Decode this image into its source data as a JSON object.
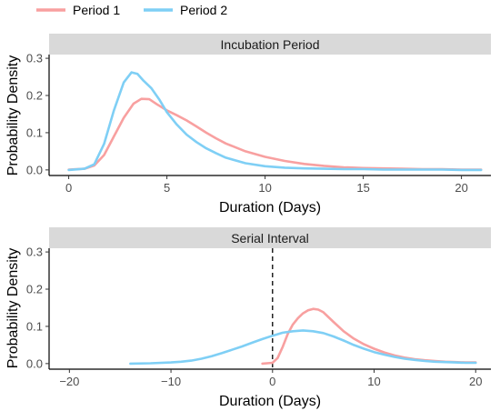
{
  "legend": {
    "items": [
      {
        "label": "Period 1",
        "color": "#F8A0A0"
      },
      {
        "label": "Period 2",
        "color": "#7FCFF5"
      }
    ],
    "position": "top-left"
  },
  "chart_data": [
    {
      "type": "line",
      "title": "Incubation Period",
      "xlabel": "Duration (Days)",
      "ylabel": "Probability Density",
      "xlim": [
        -1,
        21.5
      ],
      "ylim": [
        -0.015,
        0.31
      ],
      "xticks": [
        0,
        5,
        10,
        15,
        20
      ],
      "yticks": [
        0.0,
        0.1,
        0.2,
        0.3
      ],
      "grid": false,
      "series": [
        {
          "name": "Period 1",
          "color": "#F8A0A0",
          "x": [
            0,
            0.8,
            1.3,
            1.8,
            2.3,
            2.8,
            3.3,
            3.7,
            4.1,
            4.5,
            5,
            5.5,
            6,
            6.5,
            7,
            7.5,
            8,
            9,
            10,
            11,
            12,
            13,
            14,
            15,
            16,
            17,
            18,
            19,
            20,
            21
          ],
          "y": [
            0.001,
            0.003,
            0.012,
            0.04,
            0.09,
            0.14,
            0.178,
            0.191,
            0.19,
            0.176,
            0.16,
            0.147,
            0.133,
            0.117,
            0.1,
            0.085,
            0.071,
            0.05,
            0.035,
            0.024,
            0.016,
            0.011,
            0.007,
            0.005,
            0.004,
            0.003,
            0.002,
            0.002,
            0.001,
            0.001
          ]
        },
        {
          "name": "Period 2",
          "color": "#7FCFF5",
          "x": [
            0,
            0.8,
            1.3,
            1.8,
            2.3,
            2.8,
            3.2,
            3.5,
            3.8,
            4.2,
            4.6,
            5,
            5.5,
            6,
            6.5,
            7,
            7.5,
            8,
            9,
            10,
            11,
            12,
            13,
            14,
            15,
            16,
            17,
            18,
            19,
            20,
            21
          ],
          "y": [
            0.0,
            0.003,
            0.015,
            0.07,
            0.16,
            0.235,
            0.262,
            0.258,
            0.24,
            0.22,
            0.19,
            0.155,
            0.122,
            0.095,
            0.075,
            0.058,
            0.045,
            0.033,
            0.018,
            0.01,
            0.006,
            0.004,
            0.003,
            0.002,
            0.002,
            0.001,
            0.001,
            0.001,
            0.001,
            0.0,
            0.0
          ]
        }
      ]
    },
    {
      "type": "line",
      "title": "Serial Interval",
      "xlabel": "Duration (Days)",
      "ylabel": "Probability Density",
      "xlim": [
        -22,
        21.5
      ],
      "ylim": [
        -0.015,
        0.31
      ],
      "xticks": [
        -20,
        -10,
        0,
        10,
        20
      ],
      "yticks": [
        0.0,
        0.1,
        0.2,
        0.3
      ],
      "grid": false,
      "reference_line": {
        "x": 0,
        "style": "dashed"
      },
      "series": [
        {
          "name": "Period 1",
          "color": "#F8A0A0",
          "x": [
            -1,
            0,
            0.5,
            1,
            1.5,
            2,
            2.5,
            3,
            3.5,
            4,
            4.5,
            5,
            6,
            7,
            8,
            9,
            10,
            11,
            12,
            13,
            14,
            15,
            16,
            17,
            18,
            19,
            20
          ],
          "y": [
            0.0,
            0.002,
            0.015,
            0.045,
            0.08,
            0.105,
            0.122,
            0.135,
            0.143,
            0.147,
            0.145,
            0.138,
            0.112,
            0.087,
            0.067,
            0.052,
            0.04,
            0.03,
            0.022,
            0.016,
            0.012,
            0.009,
            0.007,
            0.005,
            0.004,
            0.003,
            0.003
          ]
        },
        {
          "name": "Period 2",
          "color": "#7FCFF5",
          "x": [
            -14,
            -12,
            -10,
            -9,
            -8,
            -7,
            -6,
            -5,
            -4,
            -3,
            -2,
            -1,
            0,
            1,
            2,
            3,
            4,
            5,
            6,
            7,
            8,
            9,
            10,
            11,
            12,
            13,
            14,
            15,
            16,
            17,
            18,
            19,
            20
          ],
          "y": [
            0.0,
            0.001,
            0.003,
            0.005,
            0.008,
            0.013,
            0.02,
            0.028,
            0.037,
            0.046,
            0.056,
            0.066,
            0.075,
            0.083,
            0.087,
            0.089,
            0.087,
            0.082,
            0.073,
            0.062,
            0.05,
            0.04,
            0.031,
            0.024,
            0.018,
            0.013,
            0.01,
            0.007,
            0.005,
            0.004,
            0.003,
            0.002,
            0.002
          ]
        }
      ]
    }
  ]
}
